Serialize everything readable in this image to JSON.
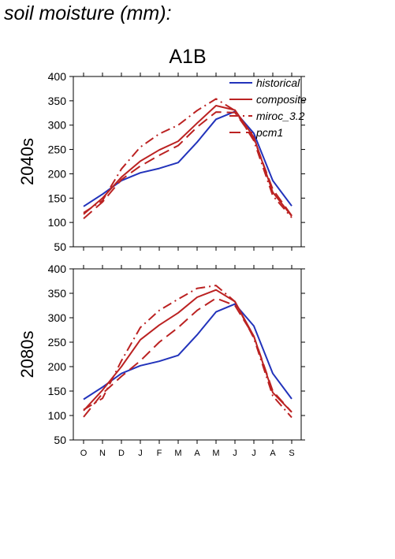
{
  "page_title": "soil moisture (mm):",
  "chart_data": {
    "type": "line",
    "title": "A1B",
    "categories": [
      "O",
      "N",
      "D",
      "J",
      "F",
      "M",
      "A",
      "M",
      "J",
      "J",
      "A",
      "S"
    ],
    "ylim": [
      50,
      400
    ],
    "yticks": [
      50,
      100,
      150,
      200,
      250,
      300,
      350,
      400
    ],
    "legend": {
      "placement": "top-right",
      "entries": [
        "historical",
        "composite",
        "miroc_3.2",
        "pcm1"
      ]
    },
    "colors": {
      "historical": "#2233bb",
      "models": "#bb2222"
    },
    "panels": [
      {
        "ylabel": "2040s",
        "series": [
          {
            "name": "historical",
            "style": "solid",
            "values": [
              133,
              158,
              186,
              202,
              211,
              223,
              265,
              312,
              328,
              283,
              186,
              134
            ]
          },
          {
            "name": "composite",
            "style": "solid",
            "values": [
              117,
              150,
              193,
              226,
              249,
              267,
              304,
              340,
              331,
              275,
              162,
              113
            ]
          },
          {
            "name": "miroc_3.2",
            "style": "dashdot",
            "values": [
              120,
              145,
              210,
              255,
              282,
              300,
              330,
              354,
              330,
              268,
              155,
              110
            ]
          },
          {
            "name": "pcm1",
            "style": "dashed",
            "values": [
              108,
              142,
              188,
              216,
              238,
              258,
              296,
              327,
              326,
              272,
              168,
              114
            ]
          }
        ]
      },
      {
        "ylabel": "2080s",
        "series": [
          {
            "name": "historical",
            "style": "solid",
            "values": [
              133,
              158,
              186,
              202,
              211,
              223,
              265,
              312,
              328,
              283,
              186,
              134
            ]
          },
          {
            "name": "composite",
            "style": "solid",
            "values": [
              110,
              152,
              200,
              255,
              285,
              310,
              342,
              357,
              333,
              262,
              147,
              107
            ]
          },
          {
            "name": "miroc_3.2",
            "style": "dashdot",
            "values": [
              112,
              135,
              212,
              280,
              315,
              338,
              360,
              366,
              333,
              258,
              140,
              96
            ]
          },
          {
            "name": "pcm1",
            "style": "dashed",
            "values": [
              97,
              145,
              180,
              212,
              250,
              280,
              315,
              340,
              325,
              262,
              150,
              107
            ]
          }
        ]
      }
    ]
  }
}
